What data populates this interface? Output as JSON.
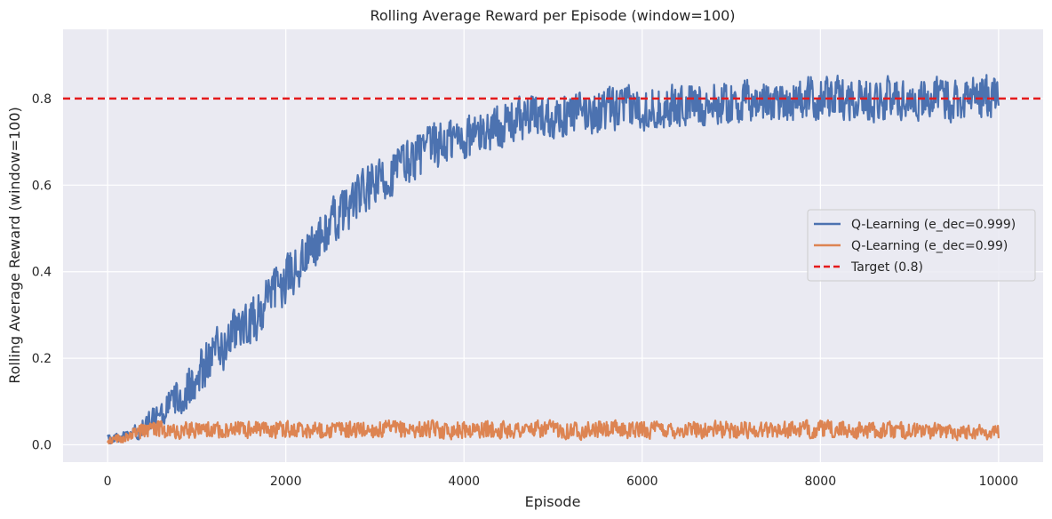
{
  "chart_data": {
    "type": "line",
    "title": "Rolling Average Reward per Episode (window=100)",
    "xlabel": "Episode",
    "ylabel": "Rolling Average Reward (window=100)",
    "xlim": [
      -500,
      10500
    ],
    "ylim": [
      -0.04,
      0.96
    ],
    "x_ticks": [
      0,
      2000,
      4000,
      6000,
      8000,
      10000
    ],
    "x_tick_labels": [
      "0",
      "2000",
      "4000",
      "6000",
      "8000",
      "10000"
    ],
    "y_ticks": [
      0.0,
      0.2,
      0.4,
      0.6,
      0.8
    ],
    "y_tick_labels": [
      "0.0",
      "0.2",
      "0.4",
      "0.6",
      "0.8"
    ],
    "grid": true,
    "background": "#eaeaf2",
    "legend_position": "center-right",
    "series": [
      {
        "name": "Q-Learning (e_dec=0.999)",
        "color": "#4c72b0",
        "trend_x": [
          0,
          200,
          400,
          600,
          800,
          1000,
          1200,
          1400,
          1600,
          1800,
          2000,
          2200,
          2400,
          2600,
          2800,
          3000,
          3200,
          3400,
          3600,
          3800,
          4000,
          4200,
          4400,
          4600,
          4800,
          5000,
          5500,
          6000,
          6500,
          7000,
          7500,
          8000,
          8500,
          9000,
          9500,
          10000
        ],
        "trend_y": [
          0.01,
          0.02,
          0.04,
          0.07,
          0.11,
          0.16,
          0.21,
          0.25,
          0.28,
          0.33,
          0.38,
          0.43,
          0.48,
          0.53,
          0.57,
          0.6,
          0.63,
          0.66,
          0.68,
          0.7,
          0.71,
          0.72,
          0.74,
          0.75,
          0.76,
          0.76,
          0.77,
          0.78,
          0.785,
          0.79,
          0.795,
          0.8,
          0.8,
          0.8,
          0.8,
          0.81
        ],
        "noise": [
          0.01,
          0.01,
          0.02,
          0.03,
          0.04,
          0.05,
          0.05,
          0.05,
          0.05,
          0.05,
          0.05,
          0.05,
          0.05,
          0.05,
          0.05,
          0.05,
          0.05,
          0.05,
          0.05,
          0.05,
          0.05,
          0.045,
          0.045,
          0.045,
          0.045,
          0.045,
          0.045,
          0.045,
          0.045,
          0.045,
          0.045,
          0.045,
          0.045,
          0.045,
          0.045,
          0.045
        ],
        "points": 1400
      },
      {
        "name": "Q-Learning (e_dec=0.99)",
        "color": "#dd8452",
        "trend_x": [
          0,
          200,
          400,
          600,
          1000,
          2000,
          4000,
          6000,
          8000,
          10000
        ],
        "trend_y": [
          0.01,
          0.02,
          0.03,
          0.035,
          0.035,
          0.035,
          0.035,
          0.035,
          0.035,
          0.03
        ],
        "noise": [
          0.008,
          0.012,
          0.016,
          0.018,
          0.018,
          0.018,
          0.018,
          0.018,
          0.018,
          0.016
        ],
        "points": 1400
      }
    ],
    "reference_lines": [
      {
        "name": "Target (0.8)",
        "y": 0.8,
        "color": "#e41a1c",
        "style": "dashed"
      }
    ]
  }
}
